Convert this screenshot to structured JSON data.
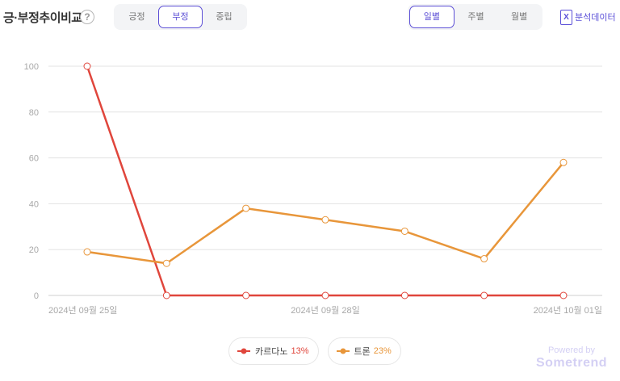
{
  "header": {
    "title": "긍·부정추이비교",
    "help_symbol": "?",
    "sentiment_tabs": [
      {
        "label": "긍정",
        "active": false
      },
      {
        "label": "부정",
        "active": true
      },
      {
        "label": "중립",
        "active": false
      }
    ],
    "period_tabs": [
      {
        "label": "일별",
        "active": true
      },
      {
        "label": "주별",
        "active": false
      },
      {
        "label": "월별",
        "active": false
      }
    ],
    "export_label": "분석데이터",
    "export_icon_letter": "X"
  },
  "chart_data": {
    "type": "line",
    "x": [
      "2024-09-25",
      "2024-09-26",
      "2024-09-27",
      "2024-09-28",
      "2024-09-29",
      "2024-09-30",
      "2024-10-01"
    ],
    "xtick_labels": [
      "2024년 09월 25일",
      "",
      "",
      "2024년 09월 28일",
      "",
      "",
      "2024년 10월 01일"
    ],
    "ylim": [
      0,
      100
    ],
    "yticks": [
      0,
      20,
      40,
      60,
      80,
      100
    ],
    "grid": true,
    "series": [
      {
        "name": "카르다노",
        "color": "#e0463c",
        "values": [
          100,
          0,
          0,
          0,
          0,
          0,
          0
        ]
      },
      {
        "name": "트론",
        "color": "#e8963a",
        "values": [
          19,
          14,
          38,
          33,
          28,
          16,
          58
        ]
      }
    ]
  },
  "legend": [
    {
      "name": "카르다노",
      "percent": "13%",
      "color": "#e0463c"
    },
    {
      "name": "트론",
      "percent": "23%",
      "color": "#e8963a"
    }
  ],
  "footer": {
    "powered_by": "Powered by",
    "brand": "Sometrend"
  }
}
